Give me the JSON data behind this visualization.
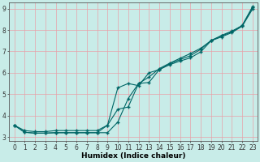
{
  "xlabel": "Humidex (Indice chaleur)",
  "xlim": [
    -0.5,
    23.5
  ],
  "ylim": [
    2.8,
    9.3
  ],
  "xticks": [
    0,
    1,
    2,
    3,
    4,
    5,
    6,
    7,
    8,
    9,
    10,
    11,
    12,
    13,
    14,
    15,
    16,
    17,
    18,
    19,
    20,
    21,
    22,
    23
  ],
  "yticks": [
    3,
    4,
    5,
    6,
    7,
    8,
    9
  ],
  "background_color": "#c8ece8",
  "grid_color": "#e8a0a8",
  "line_color": "#006666",
  "line1_x": [
    0,
    1,
    2,
    3,
    4,
    5,
    6,
    7,
    8,
    9,
    10,
    11,
    12,
    13,
    14,
    15,
    16,
    17,
    18,
    19,
    20,
    21,
    22,
    23
  ],
  "line1_y": [
    3.55,
    3.22,
    3.18,
    3.18,
    3.2,
    3.2,
    3.2,
    3.2,
    3.2,
    3.2,
    3.7,
    4.8,
    5.5,
    5.8,
    6.2,
    6.45,
    6.68,
    6.9,
    7.15,
    7.5,
    7.75,
    7.95,
    8.2,
    9.05
  ],
  "line2_x": [
    0,
    1,
    2,
    3,
    4,
    5,
    6,
    7,
    8,
    9,
    10,
    11,
    12,
    13,
    14,
    15,
    16,
    17,
    18,
    19,
    20,
    21,
    22,
    23
  ],
  "line2_y": [
    3.55,
    3.3,
    3.25,
    3.25,
    3.3,
    3.3,
    3.3,
    3.3,
    3.3,
    3.55,
    5.3,
    5.5,
    5.4,
    6.0,
    6.15,
    6.38,
    6.55,
    6.7,
    6.98,
    7.5,
    7.68,
    7.88,
    8.18,
    8.98
  ],
  "line3_x": [
    0,
    1,
    2,
    3,
    4,
    5,
    6,
    7,
    8,
    9,
    10,
    11,
    12,
    13,
    14,
    15,
    16,
    17,
    18,
    19,
    20,
    21,
    22,
    23
  ],
  "line3_y": [
    3.55,
    3.22,
    3.18,
    3.18,
    3.2,
    3.2,
    3.2,
    3.2,
    3.2,
    3.55,
    4.3,
    4.4,
    5.5,
    5.55,
    6.15,
    6.42,
    6.62,
    6.8,
    7.1,
    7.52,
    7.72,
    7.92,
    8.22,
    9.1
  ],
  "marker": "+",
  "markersize": 3.0,
  "linewidth": 0.8,
  "xlabel_fontsize": 6.5,
  "tick_fontsize": 5.5
}
